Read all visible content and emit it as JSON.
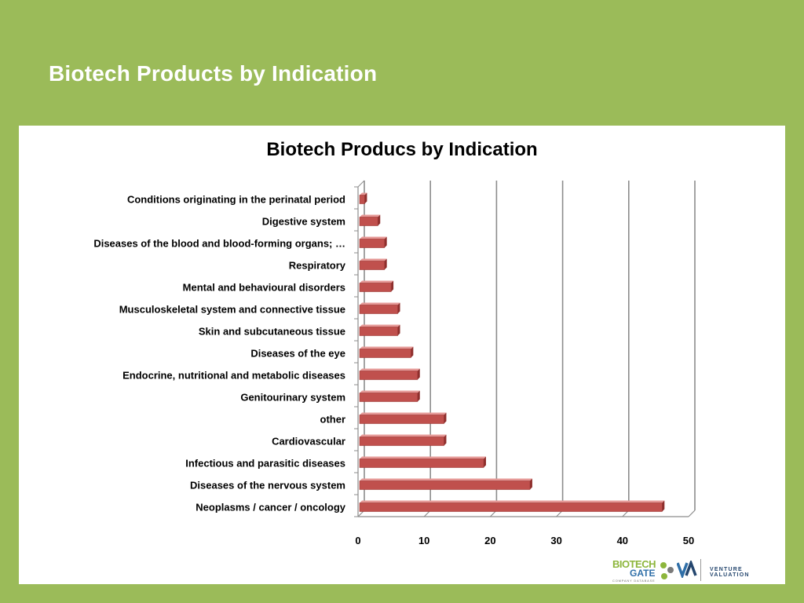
{
  "slide": {
    "title": "Biotech Products by Indication"
  },
  "chart_data": {
    "type": "bar",
    "orientation": "horizontal",
    "title": "Biotech Producs by Indication",
    "xlabel": "",
    "ylabel": "",
    "xlim": [
      0,
      50
    ],
    "xticks": [
      0,
      10,
      20,
      30,
      40,
      50
    ],
    "grid": true,
    "bar_color": "#C0504D",
    "categories": [
      "Conditions originating  in the perinatal period",
      "Digestive system",
      "Diseases of the blood and blood-forming  organs; …",
      "Respiratory",
      "Mental and behavioural  disorders",
      "Musculoskeletal  system and connective  tissue",
      "Skin and subcutaneous  tissue",
      "Diseases of the eye",
      "Endocrine, nutritional and metabolic diseases",
      "Genitourinary system",
      "other",
      "Cardiovascular",
      "Infectious and parasitic diseases",
      "Diseases of the nervous system",
      "Neoplasms / cancer  / oncology"
    ],
    "values": [
      1,
      3,
      4,
      4,
      5,
      6,
      6,
      8,
      9,
      9,
      13,
      13,
      19,
      26,
      46
    ]
  },
  "logo": {
    "biotech": "BIOTECH",
    "gate": "GATE",
    "database": "COMPANY DATABASE",
    "partner": "VENTURE VALUATION",
    "brand_green": "#8DB63C",
    "brand_blue": "#2F6FA8"
  },
  "colors": {
    "background": "#9BBB59",
    "panel": "#FFFFFF",
    "gridline": "#8C8C8C"
  }
}
